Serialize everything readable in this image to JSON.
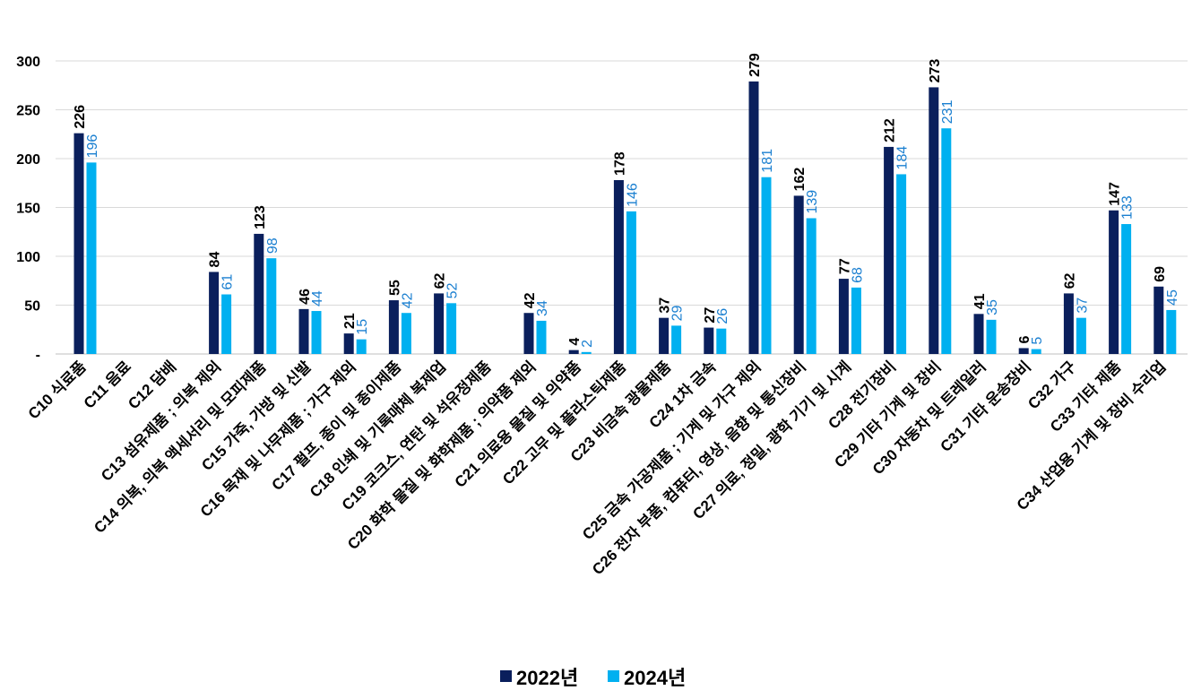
{
  "chart_data": {
    "type": "bar",
    "title": "",
    "xlabel": "",
    "ylabel": "",
    "ylim": [
      0,
      300
    ],
    "yticks": [
      0,
      50,
      100,
      150,
      200,
      250,
      300
    ],
    "ytick_labels": [
      "-",
      "50",
      "100",
      "150",
      "200",
      "250",
      "300"
    ],
    "grid": true,
    "legend_position": "bottom",
    "categories": [
      "C10 식료품",
      "C11 음료",
      "C12 담배",
      "C13 섬유제품 ; 의복 제외",
      "C14 의복, 의복 액세서리 및 모피제품",
      "C15 가죽, 가방 및 신발",
      "C16 목재 및 나무제품 ; 가구 제외",
      "C17 펄프, 종이 및 종이제품",
      "C18 인쇄 및 기록매체 복제업",
      "C19 코크스, 연탄 및 석유정제품",
      "C20 화학 물질 및 화학제품 ; 의약품 제외",
      "C21 의료용 물질 및 의약품",
      "C22 고무 및 플라스틱제품",
      "C23 비금속 광물제품",
      "C24 1차 금속",
      "C25 금속 가공제품 ; 기계 및 가구 제외",
      "C26 전자 부품, 컴퓨터, 영상, 음향 및 통신장비",
      "C27 의료, 정밀, 광학 기기 및 시계",
      "C28 전기장비",
      "C29 기타 기계 및 장비",
      "C30 자동차 및 트레일러",
      "C31 기타 운송장비",
      "C32 가구",
      "C33 기타 제품",
      "C34 산업용 기계 및 장비 수리업"
    ],
    "series": [
      {
        "name": "2022년",
        "color": "#0a1f5c",
        "values": [
          226,
          null,
          null,
          84,
          123,
          46,
          21,
          55,
          62,
          null,
          42,
          4,
          178,
          37,
          27,
          279,
          162,
          77,
          212,
          273,
          41,
          6,
          62,
          147,
          69
        ]
      },
      {
        "name": "2024년",
        "color": "#00b0f0",
        "values": [
          196,
          null,
          null,
          61,
          98,
          44,
          15,
          42,
          52,
          null,
          34,
          2,
          146,
          29,
          26,
          181,
          139,
          68,
          184,
          231,
          35,
          5,
          37,
          133,
          45
        ]
      }
    ]
  }
}
